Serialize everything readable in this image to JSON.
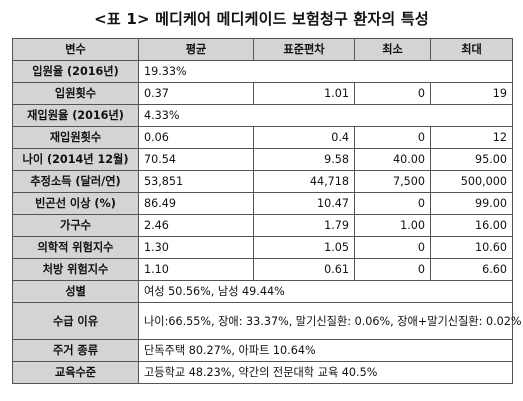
{
  "title": "<표 1> 메디케어 메디케이드 보험청구 환자의 특성",
  "header": {
    "variable": "변수",
    "mean": "평균",
    "sd": "표준편차",
    "min": "최소",
    "max": "최대"
  },
  "rows": [
    {
      "label": "입원율 (2016년)",
      "mean": "19.33%"
    },
    {
      "label": "입원횟수",
      "mean": "0.37",
      "sd": "1.01",
      "min": "0",
      "max": "19"
    },
    {
      "label": "재입원율 (2016년)",
      "mean": "4.33%"
    },
    {
      "label": "재입원횟수",
      "mean": "0.06",
      "sd": "0.4",
      "min": "0",
      "max": "12"
    },
    {
      "label": "나이 (2014년 12월)",
      "mean": "70.54",
      "sd": "9.58",
      "min": "40.00",
      "max": "95.00"
    },
    {
      "label": "추정소득 (달러/연)",
      "mean": "53,851",
      "sd": "44,718",
      "min": "7,500",
      "max": "500,000"
    },
    {
      "label": "빈곤선 이상 (%)",
      "mean": "86.49",
      "sd": "10.47",
      "min": "0",
      "max": "99.00"
    },
    {
      "label": "가구수",
      "mean": "2.46",
      "sd": "1.79",
      "min": "1.00",
      "max": "16.00"
    },
    {
      "label": "의학적 위험지수",
      "mean": "1.30",
      "sd": "1.05",
      "min": "0",
      "max": "10.60"
    },
    {
      "label": "처방 위험지수",
      "mean": "1.10",
      "sd": "0.61",
      "min": "0",
      "max": "6.60"
    },
    {
      "label": "성별",
      "mean": "여성 50.56%, 남성 49.44%"
    },
    {
      "label": "수급 이유",
      "mean": "나이:66.55%, 장애: 33.37%, 말기신질환: 0.06%, 장애+말기신질환: 0.02%"
    },
    {
      "label": "주거 종류",
      "mean": "단독주택  80.27%, 아파트 10.64%"
    },
    {
      "label": "교육수준",
      "mean": "고등학교 48.23%, 약간의 전문대학 교육 40.5%"
    }
  ]
}
